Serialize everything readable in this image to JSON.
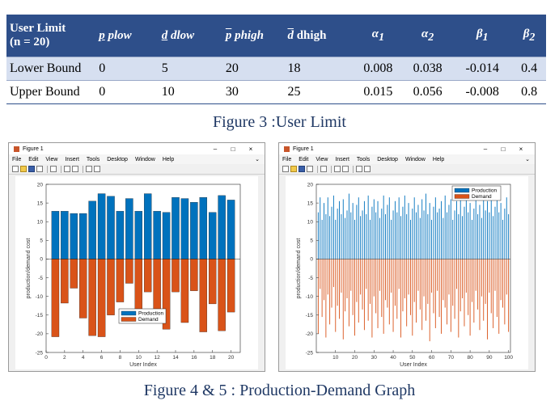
{
  "table": {
    "headers": [
      "User Limit",
      "(n = 20)",
      "p",
      "plow",
      "d",
      "dlow",
      "p",
      "phigh",
      "d",
      "dhigh",
      "α",
      "1",
      "α",
      "2",
      "β",
      "1",
      "β",
      "2"
    ],
    "rows": [
      {
        "label": "Lower Bound",
        "values": [
          "0",
          "5",
          "20",
          "18",
          "0.008",
          "0.038",
          "-0.014",
          "0.4"
        ]
      },
      {
        "label": "Upper Bound",
        "values": [
          "0",
          "10",
          "30",
          "25",
          "0.015",
          "0.056",
          "-0.008",
          "0.8"
        ]
      }
    ]
  },
  "captions": {
    "top": "Figure 3 :User Limit",
    "bottom": "Figure 4 & 5 : Production-Demand Graph"
  },
  "windows": [
    {
      "title": "Figure 1",
      "controls": [
        "–",
        "□",
        "×"
      ],
      "menu": [
        "File",
        "Edit",
        "View",
        "Insert",
        "Tools",
        "Desktop",
        "Window",
        "Help"
      ],
      "menu_chevron": "⌄",
      "chart_data": {
        "type": "bar",
        "xlabel": "User Index",
        "ylabel": "production/demand cost",
        "xlim": [
          0,
          21
        ],
        "ylim": [
          -25,
          20
        ],
        "xticks": [
          0,
          2,
          4,
          6,
          8,
          10,
          12,
          14,
          16,
          18,
          20
        ],
        "yticks": [
          20,
          15,
          10,
          5,
          0,
          -5,
          -10,
          -15,
          -20,
          -25
        ],
        "legend_position": "bottom-center",
        "grid": false,
        "x": [
          1,
          2,
          3,
          4,
          5,
          6,
          7,
          8,
          9,
          10,
          11,
          12,
          13,
          14,
          15,
          16,
          17,
          18,
          19,
          20
        ],
        "series": [
          {
            "name": "Production",
            "color": "#0072bd",
            "values": [
              12.8,
              12.8,
              12.2,
              12.2,
              15.5,
              17.5,
              16.8,
              12.8,
              16.2,
              12.8,
              17.5,
              12.8,
              12.5,
              16.5,
              16.2,
              15.2,
              16.5,
              12.5,
              17.0,
              15.8
            ]
          },
          {
            "name": "Demand",
            "color": "#d95319",
            "values": [
              -20.8,
              -11.8,
              -7.8,
              -15.8,
              -20.5,
              -20.8,
              -15.0,
              -11.5,
              -6.5,
              -15.8,
              -8.8,
              -15.8,
              -18.8,
              -8.8,
              -17.0,
              -8.5,
              -19.5,
              -12.0,
              -19.2,
              -14.2
            ]
          }
        ]
      }
    },
    {
      "title": "Figure 1",
      "controls": [
        "–",
        "□",
        "×"
      ],
      "menu": [
        "File",
        "Edit",
        "View",
        "Insert",
        "Tools",
        "Desktop",
        "Window",
        "Help"
      ],
      "menu_chevron": "⌄",
      "chart_data": {
        "type": "bar",
        "xlabel": "User Index",
        "ylabel": "production/demand cost",
        "xlim": [
          0,
          101
        ],
        "ylim": [
          -25,
          20
        ],
        "xticks": [
          10,
          20,
          30,
          40,
          50,
          60,
          70,
          80,
          90,
          100
        ],
        "yticks": [
          20,
          15,
          10,
          5,
          0,
          -5,
          -10,
          -15,
          -20,
          -25
        ],
        "legend_position": "top-right",
        "grid": false,
        "x": [
          1,
          2,
          3,
          4,
          5,
          6,
          7,
          8,
          9,
          10,
          11,
          12,
          13,
          14,
          15,
          16,
          17,
          18,
          19,
          20,
          21,
          22,
          23,
          24,
          25,
          26,
          27,
          28,
          29,
          30,
          31,
          32,
          33,
          34,
          35,
          36,
          37,
          38,
          39,
          40,
          41,
          42,
          43,
          44,
          45,
          46,
          47,
          48,
          49,
          50,
          51,
          52,
          53,
          54,
          55,
          56,
          57,
          58,
          59,
          60,
          61,
          62,
          63,
          64,
          65,
          66,
          67,
          68,
          69,
          70,
          71,
          72,
          73,
          74,
          75,
          76,
          77,
          78,
          79,
          80,
          81,
          82,
          83,
          84,
          85,
          86,
          87,
          88,
          89,
          90,
          91,
          92,
          93,
          94,
          95,
          96,
          97,
          98,
          99,
          100
        ],
        "series": [
          {
            "name": "Production",
            "color": "#0072bd",
            "values": [
              12.5,
              16.5,
              10.5,
              15.0,
              12.0,
              16.5,
              11.5,
              14.0,
              17.0,
              10.5,
              13.5,
              15.5,
              12.0,
              16.0,
              11.0,
              13.0,
              17.5,
              12.5,
              15.0,
              10.5,
              14.5,
              16.5,
              11.5,
              13.0,
              15.5,
              12.0,
              17.0,
              10.5,
              14.0,
              16.0,
              12.5,
              15.5,
              11.0,
              13.5,
              17.0,
              12.0,
              14.5,
              16.5,
              10.5,
              13.0,
              15.5,
              12.5,
              16.5,
              11.5,
              14.0,
              17.0,
              12.0,
              15.0,
              10.5,
              13.5,
              16.5,
              12.5,
              14.5,
              11.0,
              16.0,
              13.0,
              17.5,
              12.0,
              15.0,
              10.5,
              14.0,
              16.5,
              12.5,
              13.5,
              15.5,
              11.0,
              17.0,
              12.5,
              14.5,
              16.0,
              10.5,
              13.0,
              15.5,
              12.0,
              16.5,
              11.5,
              14.0,
              17.0,
              12.5,
              15.0,
              10.5,
              13.5,
              16.0,
              12.0,
              14.5,
              11.0,
              16.5,
              13.0,
              15.5,
              12.5,
              17.0,
              11.5,
              14.0,
              16.0,
              12.5,
              15.0,
              10.5,
              13.5,
              16.5,
              12.0
            ]
          },
          {
            "name": "Demand",
            "color": "#d95319",
            "values": [
              -20.0,
              -8.0,
              -15.5,
              -11.0,
              -21.0,
              -9.5,
              -17.5,
              -13.0,
              -7.5,
              -19.5,
              -12.5,
              -16.0,
              -9.0,
              -21.5,
              -14.0,
              -10.5,
              -18.0,
              -8.5,
              -15.0,
              -20.5,
              -11.5,
              -17.0,
              -9.5,
              -13.5,
              -19.0,
              -8.0,
              -16.5,
              -12.0,
              -21.0,
              -10.0,
              -14.5,
              -18.5,
              -8.5,
              -15.5,
              -20.0,
              -11.0,
              -13.0,
              -17.5,
              -9.0,
              -19.5,
              -12.5,
              -16.0,
              -8.0,
              -21.0,
              -14.0,
              -10.5,
              -18.0,
              -9.5,
              -15.0,
              -20.5,
              -11.5,
              -17.0,
              -8.5,
              -13.5,
              -19.0,
              -10.0,
              -16.5,
              -12.0,
              -22.0,
              -9.0,
              -14.5,
              -18.5,
              -8.5,
              -15.5,
              -20.0,
              -11.0,
              -13.0,
              -17.5,
              -9.5,
              -19.5,
              -12.5,
              -16.0,
              -8.0,
              -21.0,
              -14.0,
              -10.5,
              -18.0,
              -9.0,
              -15.0,
              -20.5,
              -11.5,
              -17.0,
              -8.5,
              -13.5,
              -19.0,
              -10.0,
              -16.5,
              -12.0,
              -21.5,
              -9.0,
              -14.5,
              -18.5,
              -8.5,
              -15.5,
              -20.0,
              -11.0,
              -13.0,
              -17.5,
              -9.5,
              -19.5
            ]
          }
        ]
      }
    }
  ]
}
